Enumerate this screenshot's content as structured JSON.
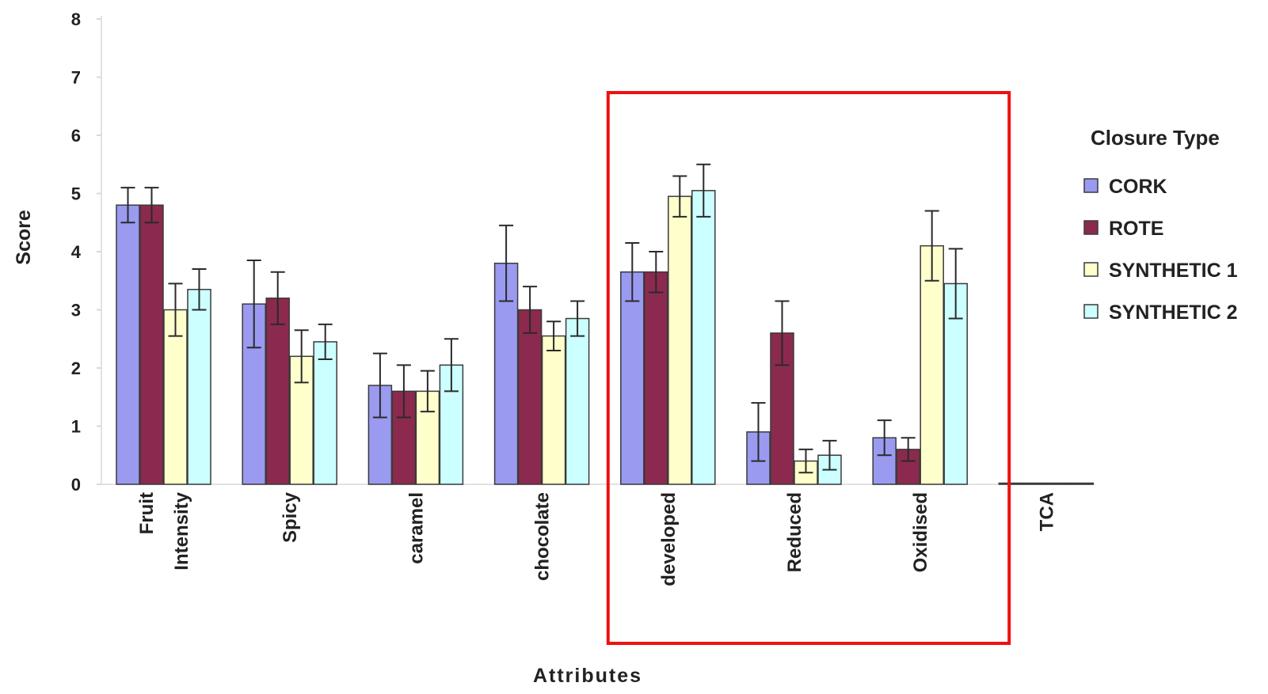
{
  "chart_data": {
    "type": "bar",
    "xlabel": "Attributes",
    "ylabel": "Score",
    "ylim": [
      0,
      8
    ],
    "yticks": [
      "0",
      "1",
      "2",
      "3",
      "4",
      "5",
      "6",
      "7",
      "8"
    ],
    "grid": false,
    "categories": [
      [
        "Fruit",
        "Intensity"
      ],
      [
        "Spicy"
      ],
      [
        "caramel"
      ],
      [
        "chocolate"
      ],
      [
        "developed"
      ],
      [
        "Reduced"
      ],
      [
        "Oxidised"
      ],
      [
        "TCA"
      ]
    ],
    "legend": {
      "title": "Closure Type",
      "position": "right"
    },
    "series": [
      {
        "name": "CORK",
        "color": "#9a9af0",
        "values": [
          4.8,
          3.1,
          1.7,
          3.8,
          3.65,
          0.9,
          0.8,
          0.02
        ],
        "errors": [
          0.3,
          0.75,
          0.55,
          0.65,
          0.5,
          0.5,
          0.3,
          0
        ]
      },
      {
        "name": "ROTE",
        "color": "#8b2a4e",
        "values": [
          4.8,
          3.2,
          1.6,
          3.0,
          3.65,
          2.6,
          0.6,
          0.02
        ],
        "errors": [
          0.3,
          0.45,
          0.45,
          0.4,
          0.35,
          0.55,
          0.2,
          0
        ]
      },
      {
        "name": "SYNTHETIC 1",
        "color": "#ffffcc",
        "values": [
          3.0,
          2.2,
          1.6,
          2.55,
          4.95,
          0.4,
          4.1,
          0.02
        ],
        "errors": [
          0.45,
          0.45,
          0.35,
          0.25,
          0.35,
          0.2,
          0.6,
          0
        ]
      },
      {
        "name": "SYNTHETIC 2",
        "color": "#ccffff",
        "values": [
          3.35,
          2.45,
          2.05,
          2.85,
          5.05,
          0.5,
          3.45,
          0.02
        ],
        "errors": [
          0.35,
          0.3,
          0.45,
          0.3,
          0.45,
          0.25,
          0.6,
          0
        ]
      }
    ],
    "highlight": {
      "color": "#ee1111",
      "categories": [
        "developed",
        "Reduced",
        "Oxidised"
      ]
    }
  }
}
